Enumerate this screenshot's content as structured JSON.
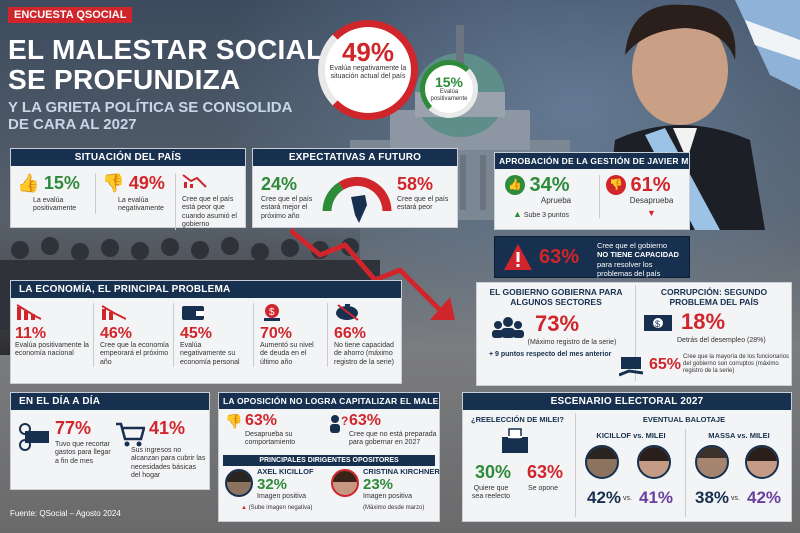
{
  "header": {
    "tag": "ENCUESTA QSOCIAL",
    "title_line1": "EL MALESTAR SOCIAL",
    "title_line2": "SE PROFUNDIZA",
    "subtitle_line1": "Y LA GRIETA POLÍTICA SE CONSOLIDA",
    "subtitle_line2": "DE CARA AL 2027"
  },
  "hero": {
    "neg_value": "49%",
    "neg_text": "Evalúa negativamente la situación actual del país",
    "pos_value": "15%",
    "pos_text": "Evalúa positivamente"
  },
  "situacion": {
    "title": "SITUACIÓN DEL PAÍS",
    "pos_value": "15%",
    "pos_text": "La evalúa positivamente",
    "neg_value": "49%",
    "neg_text": "La evalúa negativamente",
    "worse_text": "Cree que el país está peor que cuando asumió el gobierno"
  },
  "expectativas": {
    "title": "EXPECTATIVAS A FUTURO",
    "better_value": "24%",
    "better_text": "Cree que el país estará mejor el próximo año",
    "worse_value": "58%",
    "worse_text": "Cree que el país estará peor"
  },
  "aprobacion": {
    "title": "APROBACIÓN DE LA GESTIÓN DE JAVIER MILEI",
    "approve_value": "34%",
    "approve_label": "Aprueba",
    "approve_change": "Sube 3 puntos",
    "disapprove_value": "61%",
    "disapprove_label": "Desaprueba"
  },
  "capacidad": {
    "value": "63%",
    "line1": "Cree que el gobierno",
    "line2": "NO TIENE CAPACIDAD",
    "line3": "para resolver los problemas del país"
  },
  "economia": {
    "title": "LA ECONOMÍA, EL PRINCIPAL PROBLEMA",
    "items": [
      {
        "value": "11%",
        "text": "Evalúa positivamente la economía nacional"
      },
      {
        "value": "46%",
        "text": "Cree que la economía empeorará el próximo año"
      },
      {
        "value": "45%",
        "text": "Evalúa negativamente su economía personal"
      },
      {
        "value": "70%",
        "text": "Aumentó su nivel de deuda en el último año"
      },
      {
        "value": "66%",
        "text": "No tiene capacidad de ahorro (máximo registro de la serie)"
      }
    ]
  },
  "sectores": {
    "title_line1": "EL GOBIERNO GOBIERNA PARA",
    "title_line2": "ALGUNOS SECTORES",
    "value": "73%",
    "text": "(Máximo registro de la serie)",
    "change": "+ 9 puntos respecto del mes anterior"
  },
  "corrupcion": {
    "title_line1": "CORRUPCIÓN: SEGUNDO",
    "title_line2": "PROBLEMA DEL PAÍS",
    "value": "18%",
    "text": "Detrás del desempleo (28%)",
    "value2": "65%",
    "text2": "Cree que la mayoría de los funcionarios del gobierno son corruptos (máximo registro de la serie)"
  },
  "dia": {
    "title": "EN EL DÍA A DÍA",
    "items": [
      {
        "value": "77%",
        "text": "Tuvo que recortar gastos para llegar a fin de mes"
      },
      {
        "value": "41%",
        "text": "Sus ingresos no alcanzan para cubrir las necesidades básicas del hogar"
      }
    ]
  },
  "oposicion": {
    "title": "LA OPOSICIÓN NO LOGRA CAPITALIZAR EL MALESTAR",
    "disapprove_value": "63%",
    "disapprove_text": "Desaprueba su comportamiento",
    "notready_value": "63%",
    "notready_text": "Cree que no está preparada para gobernar en 2027",
    "subtitle": "PRINCIPALES DIRIGENTES OPOSITORES",
    "leaders": [
      {
        "name": "AXEL KICILLOF",
        "value": "32%",
        "label": "Imagen positiva",
        "note": "(Sube imagen negativa)"
      },
      {
        "name": "CRISTINA KIRCHNER",
        "value": "23%",
        "label": "Imagen positiva",
        "note": "(Máximo desde marzo)"
      }
    ]
  },
  "electoral": {
    "title": "ESCENARIO ELECTORAL 2027",
    "reelection_q": "¿REELECCIÓN DE MILEI?",
    "yes_value": "30%",
    "yes_text": "Quiere que sea reelecto",
    "no_value": "63%",
    "no_text": "Se opone",
    "ballotage_title": "EVENTUAL BALOTAJE",
    "matchups": [
      {
        "label": "KICILLOF vs. MILEI",
        "left": "42%",
        "vs": "vs.",
        "right": "41%"
      },
      {
        "label": "MASSA vs. MILEI",
        "left": "38%",
        "vs": "vs.",
        "right": "42%"
      }
    ]
  },
  "footer": {
    "source": "Fuente: QSocial – Agosto 2024"
  },
  "colors": {
    "navy": "#17304f",
    "red": "#d0262b",
    "green": "#2e8b3a"
  }
}
